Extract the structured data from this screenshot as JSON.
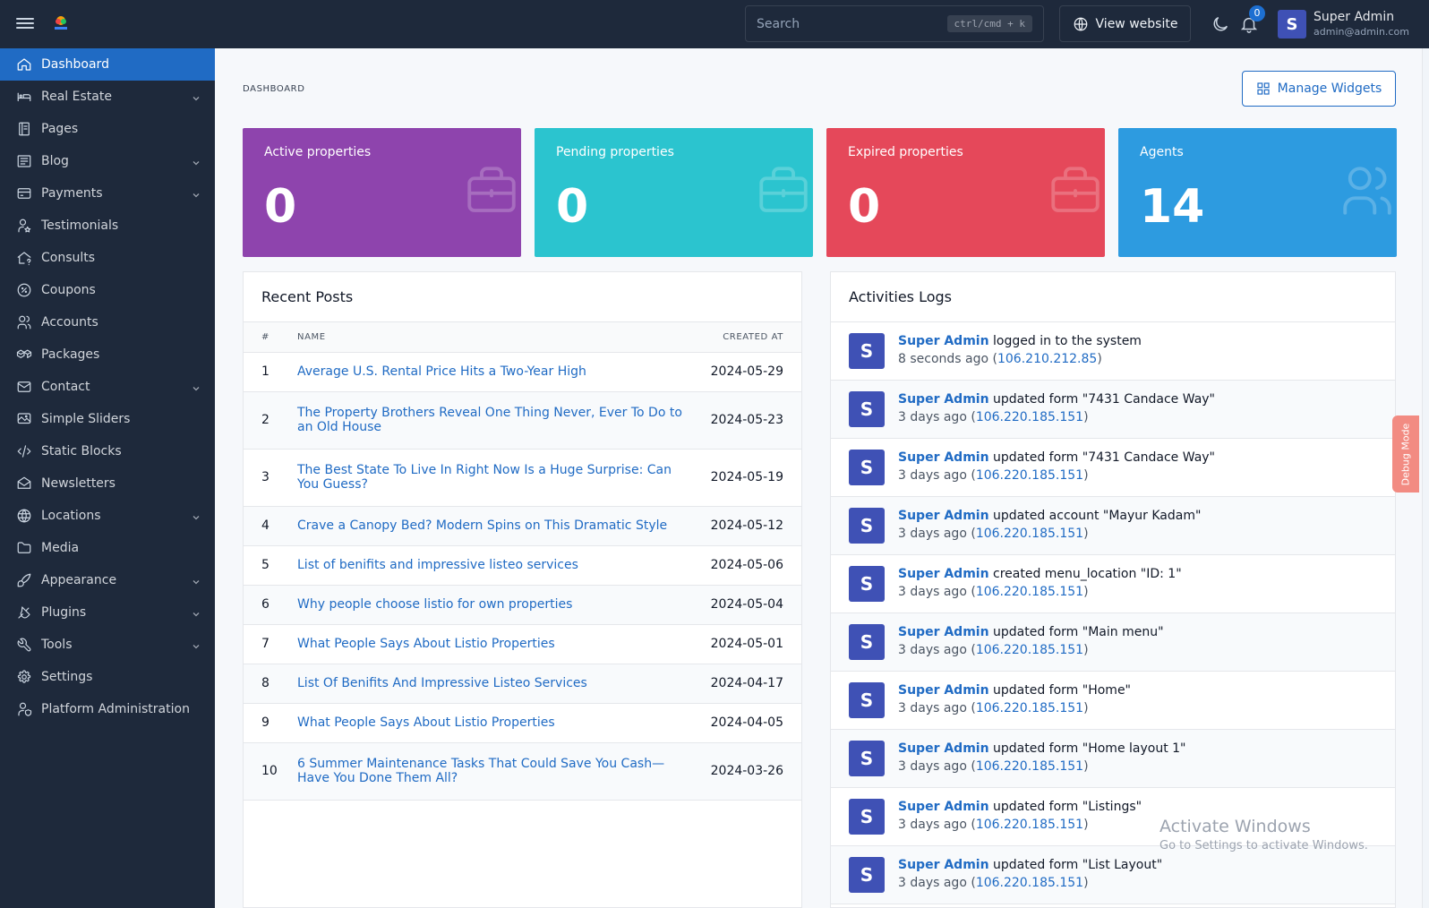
{
  "topbar": {
    "search_placeholder": "Search",
    "search_shortcut": "ctrl/cmd + k",
    "view_website_label": "View website",
    "notification_count": "0",
    "user": {
      "initial": "S",
      "name": "Super Admin",
      "email": "admin@admin.com"
    }
  },
  "sidebar": {
    "items": [
      {
        "label": "Dashboard",
        "icon": "home-icon",
        "active": true,
        "has_children": false
      },
      {
        "label": "Real Estate",
        "icon": "bed-icon",
        "has_children": true
      },
      {
        "label": "Pages",
        "icon": "notebook-icon",
        "has_children": false
      },
      {
        "label": "Blog",
        "icon": "article-icon",
        "has_children": true
      },
      {
        "label": "Payments",
        "icon": "credit-card-icon",
        "has_children": true
      },
      {
        "label": "Testimonials",
        "icon": "user-star-icon",
        "has_children": false
      },
      {
        "label": "Consults",
        "icon": "home-question-icon",
        "has_children": false
      },
      {
        "label": "Coupons",
        "icon": "discount-icon",
        "has_children": false
      },
      {
        "label": "Accounts",
        "icon": "users-icon",
        "has_children": false
      },
      {
        "label": "Packages",
        "icon": "packages-icon",
        "has_children": false
      },
      {
        "label": "Contact",
        "icon": "mail-icon",
        "has_children": true
      },
      {
        "label": "Simple Sliders",
        "icon": "slideshow-icon",
        "has_children": false
      },
      {
        "label": "Static Blocks",
        "icon": "code-icon",
        "has_children": false
      },
      {
        "label": "Newsletters",
        "icon": "mail-opened-icon",
        "has_children": false
      },
      {
        "label": "Locations",
        "icon": "world-icon",
        "has_children": true
      },
      {
        "label": "Media",
        "icon": "folder-icon",
        "has_children": false
      },
      {
        "label": "Appearance",
        "icon": "brush-icon",
        "has_children": true
      },
      {
        "label": "Plugins",
        "icon": "plug-icon",
        "has_children": true
      },
      {
        "label": "Tools",
        "icon": "tool-icon",
        "has_children": true
      },
      {
        "label": "Settings",
        "icon": "settings-icon",
        "has_children": false
      },
      {
        "label": "Platform Administration",
        "icon": "user-shield-icon",
        "has_children": false
      }
    ]
  },
  "main": {
    "breadcrumb": "DASHBOARD",
    "manage_widgets_label": "Manage Widgets",
    "stats": [
      {
        "label": "Active properties",
        "value": "0",
        "color": "#8e44ad",
        "icon": "briefcase-icon"
      },
      {
        "label": "Pending properties",
        "value": "0",
        "color": "#2bc4cf",
        "icon": "briefcase-icon"
      },
      {
        "label": "Expired properties",
        "value": "0",
        "color": "#e5485a",
        "icon": "briefcase-icon"
      },
      {
        "label": "Agents",
        "value": "14",
        "color": "#2d9be0",
        "icon": "users-icon"
      }
    ],
    "recent_posts": {
      "title": "Recent Posts",
      "columns": [
        "#",
        "NAME",
        "CREATED AT"
      ],
      "rows": [
        {
          "num": "1",
          "name": "Average U.S. Rental Price Hits a Two-Year High",
          "date": "2024-05-29"
        },
        {
          "num": "2",
          "name": "The Property Brothers Reveal One Thing Never, Ever To Do to an Old House",
          "date": "2024-05-23"
        },
        {
          "num": "3",
          "name": "The Best State To Live In Right Now Is a Huge Surprise: Can You Guess?",
          "date": "2024-05-19"
        },
        {
          "num": "4",
          "name": "Crave a Canopy Bed? Modern Spins on This Dramatic Style",
          "date": "2024-05-12"
        },
        {
          "num": "5",
          "name": "List of benifits and impressive listeo services",
          "date": "2024-05-06"
        },
        {
          "num": "6",
          "name": "Why people choose listio for own properties",
          "date": "2024-05-04"
        },
        {
          "num": "7",
          "name": "What People Says About Listio Properties",
          "date": "2024-05-01"
        },
        {
          "num": "8",
          "name": "List Of Benifits And Impressive Listeo Services",
          "date": "2024-04-17"
        },
        {
          "num": "9",
          "name": "What People Says About Listio Properties",
          "date": "2024-04-05"
        },
        {
          "num": "10",
          "name": "6 Summer Maintenance Tasks That Could Save You Cash—Have You Done Them All?",
          "date": "2024-03-26"
        }
      ]
    },
    "activity_logs": {
      "title": "Activities Logs",
      "items": [
        {
          "initial": "S",
          "who": "Super Admin",
          "action": " logged in to the system",
          "when": "8 seconds ago",
          "ip": "106.210.212.85"
        },
        {
          "initial": "S",
          "who": "Super Admin",
          "action": " updated form \"7431 Candace Way\"",
          "when": "3 days ago",
          "ip": "106.220.185.151"
        },
        {
          "initial": "S",
          "who": "Super Admin",
          "action": " updated form \"7431 Candace Way\"",
          "when": "3 days ago",
          "ip": "106.220.185.151"
        },
        {
          "initial": "S",
          "who": "Super Admin",
          "action": " updated account \"Mayur Kadam\"",
          "when": "3 days ago",
          "ip": "106.220.185.151"
        },
        {
          "initial": "S",
          "who": "Super Admin",
          "action": " created menu_location \"ID: 1\"",
          "when": "3 days ago",
          "ip": "106.220.185.151"
        },
        {
          "initial": "S",
          "who": "Super Admin",
          "action": " updated form \"Main menu\"",
          "when": "3 days ago",
          "ip": "106.220.185.151"
        },
        {
          "initial": "S",
          "who": "Super Admin",
          "action": " updated form \"Home\"",
          "when": "3 days ago",
          "ip": "106.220.185.151"
        },
        {
          "initial": "S",
          "who": "Super Admin",
          "action": " updated form \"Home layout 1\"",
          "when": "3 days ago",
          "ip": "106.220.185.151"
        },
        {
          "initial": "S",
          "who": "Super Admin",
          "action": " updated form \"Listings\"",
          "when": "3 days ago",
          "ip": "106.220.185.151"
        },
        {
          "initial": "S",
          "who": "Super Admin",
          "action": " updated form \"List Layout\"",
          "when": "3 days ago",
          "ip": "106.220.185.151"
        }
      ]
    }
  },
  "debug_tab_label": "Debug Mode",
  "watermark": {
    "line1": "Activate Windows",
    "line2": "Go to Settings to activate Windows."
  }
}
